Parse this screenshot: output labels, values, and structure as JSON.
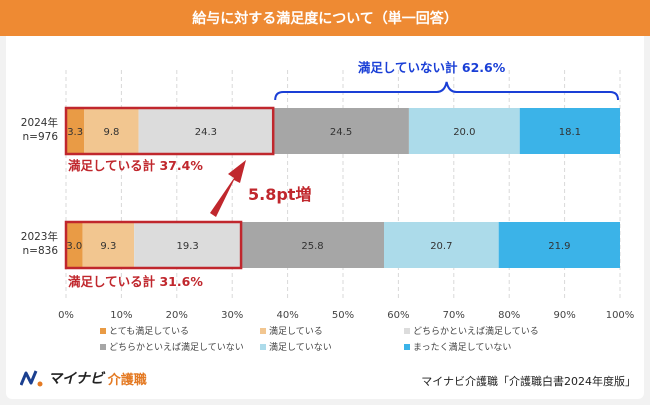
{
  "title": "給与に対する満足度について（単一回答）",
  "brand": {
    "name": "マイナビ",
    "sub": "介護職"
  },
  "source": "マイナビ介護職「介護職白書2024年度版」",
  "colors": {
    "header": "#ee8a33",
    "highlight": "#c0272d",
    "brace": "#1a3fd6"
  },
  "annotations": {
    "unsatisfied_total": "満足していない計 62.6%",
    "sat_2024": "満足している計 37.4%",
    "sat_2023": "満足している計 31.6%",
    "increase": "5.8pt増"
  },
  "chart_data": {
    "type": "bar",
    "orientation": "horizontal",
    "stacked": true,
    "categories": [
      {
        "label_line1": "2024年",
        "label_line2": "n=976"
      },
      {
        "label_line1": "2023年",
        "label_line2": "n=836"
      }
    ],
    "series": [
      {
        "name": "とても満足している",
        "color": "#e99b45",
        "values": [
          3.3,
          3.0
        ]
      },
      {
        "name": "満足している",
        "color": "#f2c690",
        "values": [
          9.8,
          9.3
        ]
      },
      {
        "name": "どちらかといえば満足している",
        "color": "#dcdcdc",
        "values": [
          24.3,
          19.3
        ]
      },
      {
        "name": "どちらかといえば満足していない",
        "color": "#a6a6a6",
        "values": [
          24.5,
          25.8
        ]
      },
      {
        "name": "満足していない",
        "color": "#acdbea",
        "values": [
          20.0,
          20.7
        ]
      },
      {
        "name": "まったく満足していない",
        "color": "#3bb3e8",
        "values": [
          18.1,
          21.9
        ]
      }
    ],
    "xlim": [
      0,
      100
    ],
    "xticks": [
      "0%",
      "10%",
      "20%",
      "30%",
      "40%",
      "50%",
      "60%",
      "70%",
      "80%",
      "90%",
      "100%"
    ],
    "grid": true,
    "legend": "bottom"
  }
}
